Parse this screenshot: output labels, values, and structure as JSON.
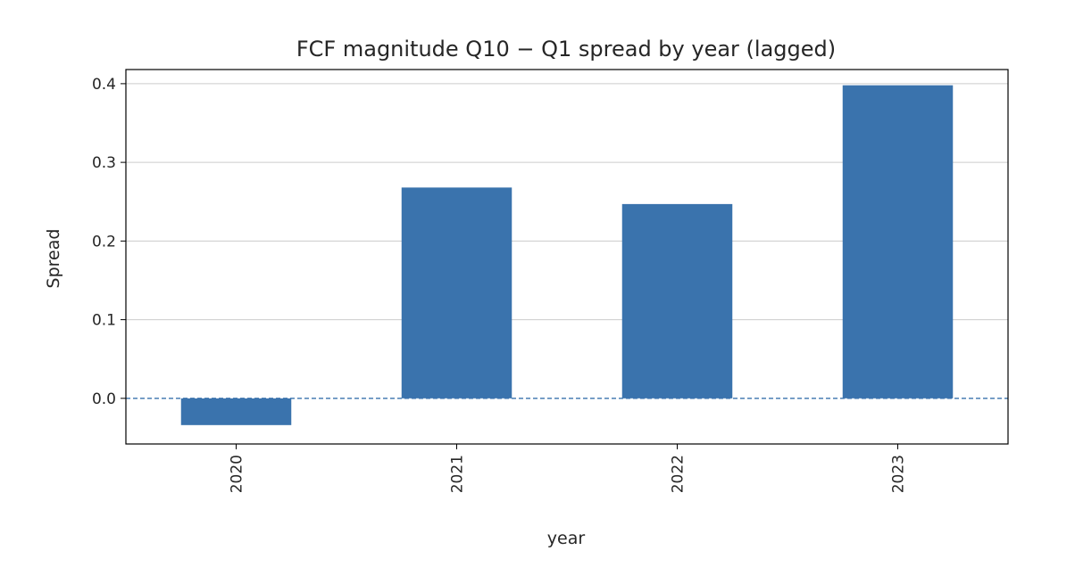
{
  "chart_data": {
    "type": "bar",
    "title": "FCF magnitude Q10 − Q1 spread by year (lagged)",
    "xlabel": "year",
    "ylabel": "Spread",
    "categories": [
      "2020",
      "2021",
      "2022",
      "2023"
    ],
    "values": [
      -0.034,
      0.268,
      0.247,
      0.398
    ],
    "ylim": [
      -0.058,
      0.418
    ],
    "yticks": [
      0.0,
      0.1,
      0.2,
      0.3,
      0.4
    ],
    "ytick_labels": [
      "0.0",
      "0.1",
      "0.2",
      "0.3",
      "0.4"
    ],
    "grid": "horizontal",
    "reference_line": {
      "y": 0.0,
      "style": "dashed"
    },
    "colors": {
      "bar": "#3a73ad",
      "grid": "#cccccc",
      "reference_line": "#3a73ad",
      "axes": "#000000"
    }
  }
}
